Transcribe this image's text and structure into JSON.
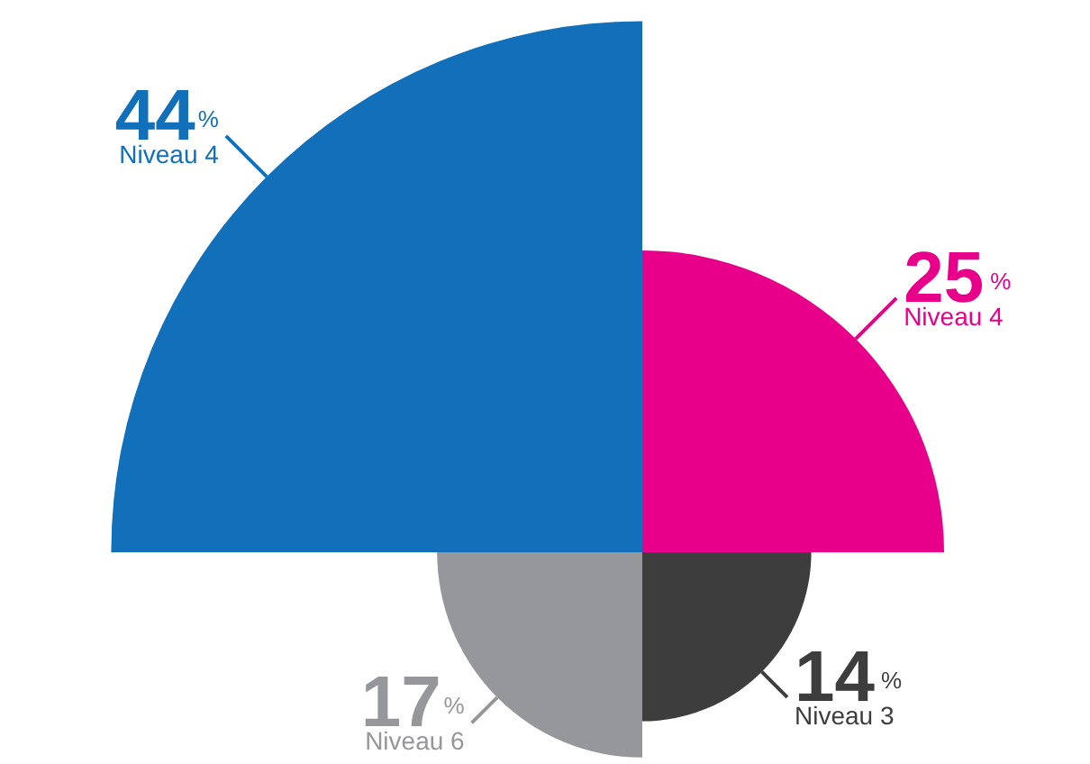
{
  "chart_data": {
    "type": "other",
    "categories": [
      "Niveau 4",
      "Niveau 4",
      "Niveau 3",
      "Niveau 6"
    ],
    "values": [
      44,
      25,
      14,
      17
    ],
    "colors": [
      "#1170b9",
      "#e8008a",
      "#3d3d3d",
      "#96979b"
    ],
    "value_labels": [
      "44%",
      "25%",
      "14%",
      "17%"
    ]
  }
}
